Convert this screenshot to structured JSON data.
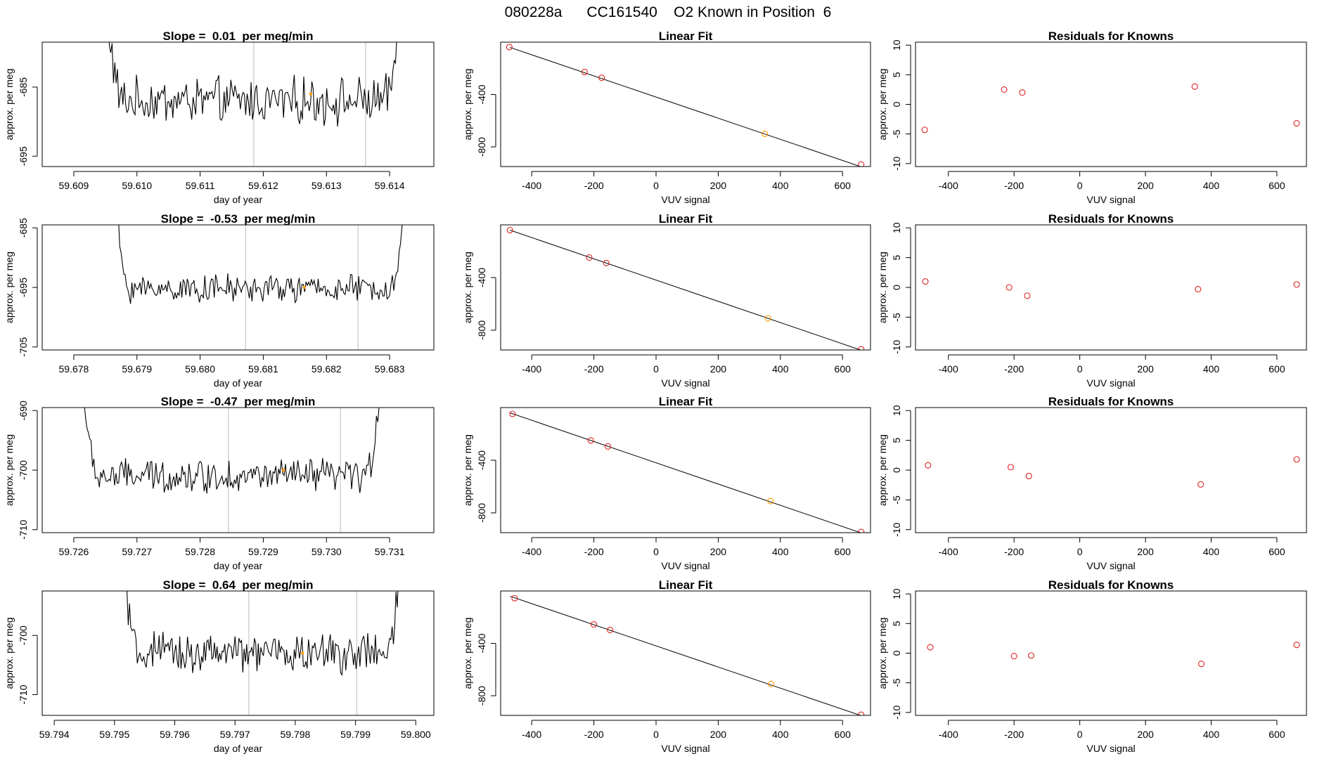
{
  "title": "080228a      CC161540    O2 Known in Position  6",
  "colors": {
    "trace": "#000000",
    "vline": "#bbbbbb",
    "point": "#dd2222",
    "highlight": "#ff9900",
    "axis": "#000000"
  },
  "chart_data": [
    {
      "type": "line",
      "row": 1,
      "title": "Slope =  0.01  per meg/min",
      "xlabel": "day of year",
      "ylabel": "approx. per meg",
      "xlim": [
        59.6085,
        59.6147
      ],
      "ylim": [
        -696.5,
        -678.5
      ],
      "xticks": [
        59.609,
        59.61,
        59.611,
        59.612,
        59.613,
        59.614
      ],
      "xtick_labels": [
        "59.609",
        "59.610",
        "59.611",
        "59.612",
        "59.613",
        "59.614"
      ],
      "yticks": [
        -685,
        -695
      ],
      "ytick_labels": [
        "-685",
        "-695"
      ],
      "start": 59.6095,
      "end": 59.6142,
      "base": -687.0,
      "amp": 2.6,
      "high": -670,
      "vlines": [
        59.61185,
        59.61362
      ],
      "highlight": [
        59.61275,
        -686.0
      ]
    },
    {
      "type": "line",
      "row": 2,
      "title": "Slope =  -0.53  per meg/min",
      "xlabel": "day of year",
      "ylabel": "approx. per meg",
      "xlim": [
        59.6775,
        59.6837
      ],
      "ylim": [
        -705.5,
        -684.5
      ],
      "xticks": [
        59.678,
        59.679,
        59.68,
        59.681,
        59.682,
        59.683
      ],
      "xtick_labels": [
        "59.678",
        "59.679",
        "59.680",
        "59.681",
        "59.682",
        "59.683"
      ],
      "yticks": [
        -685,
        -695,
        -705
      ],
      "ytick_labels": [
        "-685",
        "-695",
        "-705"
      ],
      "start": 59.6786,
      "end": 59.6833,
      "base": -695.2,
      "amp": 1.8,
      "high": -670,
      "vlines": [
        59.68072,
        59.6825
      ],
      "highlight": [
        59.68165,
        -695.0
      ]
    },
    {
      "type": "line",
      "row": 3,
      "title": "Slope =  -0.47  per meg/min",
      "xlabel": "day of year",
      "ylabel": "approx. per meg",
      "xlim": [
        59.7255,
        59.7317
      ],
      "ylim": [
        -710.5,
        -689.5
      ],
      "xticks": [
        59.726,
        59.727,
        59.728,
        59.729,
        59.73,
        59.731
      ],
      "xtick_labels": [
        "59.726",
        "59.727",
        "59.728",
        "59.729",
        "59.730",
        "59.731"
      ],
      "yticks": [
        -690,
        -700,
        -710
      ],
      "ytick_labels": [
        "-690",
        "-700",
        "-710"
      ],
      "start": 59.7261,
      "end": 59.7309,
      "base": -701.0,
      "amp": 2.2,
      "high": -680,
      "vlines": [
        59.72845,
        59.73022
      ],
      "highlight": [
        59.72932,
        -700.0
      ]
    },
    {
      "type": "line",
      "row": 4,
      "title": "Slope =  0.64  per meg/min",
      "xlabel": "day of year",
      "ylabel": "approx. per meg",
      "xlim": [
        59.7938,
        59.8003
      ],
      "ylim": [
        -713.5,
        -692.5
      ],
      "xticks": [
        59.794,
        59.795,
        59.796,
        59.797,
        59.798,
        59.799,
        59.8
      ],
      "xtick_labels": [
        "59.794",
        "59.795",
        "59.796",
        "59.797",
        "59.798",
        "59.799",
        "59.800"
      ],
      "yticks": [
        -700,
        -710
      ],
      "ytick_labels": [
        "-700",
        "-710"
      ],
      "start": 59.7951,
      "end": 59.7998,
      "base": -703.0,
      "amp": 2.6,
      "high": -680,
      "vlines": [
        59.79723,
        59.79902
      ],
      "highlight": [
        59.79812,
        -703.0
      ]
    },
    {
      "type": "scatter",
      "row": 1,
      "title": "Linear Fit",
      "xlabel": "VUV signal",
      "ylabel": "approx. per meg",
      "xlim": [
        -500,
        690
      ],
      "ylim": [
        -950,
        0
      ],
      "xticks": [
        -400,
        -200,
        0,
        200,
        400,
        600
      ],
      "xtick_labels": [
        "-400",
        "-200",
        "0",
        "200",
        "400",
        "600"
      ],
      "yticks": [
        -400,
        -800
      ],
      "ytick_labels": [
        "-400",
        "-800"
      ],
      "line": [
        [
          -470,
          -40
        ],
        [
          670,
          -960
        ]
      ],
      "points": [
        [
          -472,
          -38
        ],
        [
          -230,
          -228
        ],
        [
          -175,
          -272
        ],
        [
          350,
          -700
        ],
        [
          660,
          -935
        ]
      ],
      "highlight_index": 3
    },
    {
      "type": "scatter",
      "row": 2,
      "title": "Linear Fit",
      "xlabel": "VUV signal",
      "ylabel": "approx. per meg",
      "xlim": [
        -500,
        690
      ],
      "ylim": [
        -950,
        0
      ],
      "xticks": [
        -400,
        -200,
        0,
        200,
        400,
        600
      ],
      "xtick_labels": [
        "-400",
        "-200",
        "0",
        "200",
        "400",
        "600"
      ],
      "yticks": [
        -400,
        -800
      ],
      "ytick_labels": [
        "-400",
        "-800"
      ],
      "line": [
        [
          -470,
          -40
        ],
        [
          670,
          -960
        ]
      ],
      "points": [
        [
          -470,
          -40
        ],
        [
          -215,
          -248
        ],
        [
          -160,
          -290
        ],
        [
          360,
          -710
        ],
        [
          660,
          -945
        ]
      ],
      "highlight_index": 3
    },
    {
      "type": "scatter",
      "row": 3,
      "title": "Linear Fit",
      "xlabel": "VUV signal",
      "ylabel": "approx. per meg",
      "xlim": [
        -500,
        690
      ],
      "ylim": [
        -950,
        0
      ],
      "xticks": [
        -400,
        -200,
        0,
        200,
        400,
        600
      ],
      "xtick_labels": [
        "-400",
        "-200",
        "0",
        "200",
        "400",
        "600"
      ],
      "yticks": [
        -400,
        -800
      ],
      "ytick_labels": [
        "-400",
        "-800"
      ],
      "line": [
        [
          -470,
          -40
        ],
        [
          670,
          -960
        ]
      ],
      "points": [
        [
          -462,
          -48
        ],
        [
          -210,
          -250
        ],
        [
          -155,
          -295
        ],
        [
          368,
          -710
        ],
        [
          660,
          -945
        ]
      ],
      "highlight_index": 3
    },
    {
      "type": "scatter",
      "row": 4,
      "title": "Linear Fit",
      "xlabel": "VUV signal",
      "ylabel": "approx. per meg",
      "xlim": [
        -500,
        690
      ],
      "ylim": [
        -950,
        0
      ],
      "xticks": [
        -400,
        -200,
        0,
        200,
        400,
        600
      ],
      "xtick_labels": [
        "-400",
        "-200",
        "0",
        "200",
        "400",
        "600"
      ],
      "yticks": [
        -400,
        -800
      ],
      "ytick_labels": [
        "-400",
        "-800"
      ],
      "line": [
        [
          -470,
          -40
        ],
        [
          670,
          -960
        ]
      ],
      "points": [
        [
          -455,
          -55
        ],
        [
          -200,
          -255
        ],
        [
          -148,
          -298
        ],
        [
          370,
          -710
        ],
        [
          660,
          -945
        ]
      ],
      "highlight_index": 3
    },
    {
      "type": "scatter",
      "row": 1,
      "title": "Residuals for Knowns",
      "xlabel": "VUV signal",
      "ylabel": "approx. per meg",
      "xlim": [
        -500,
        690
      ],
      "ylim": [
        -10.5,
        10.5
      ],
      "xticks": [
        -400,
        -200,
        0,
        200,
        400,
        600
      ],
      "xtick_labels": [
        "-400",
        "-200",
        "0",
        "200",
        "400",
        "600"
      ],
      "yticks": [
        10,
        5,
        0,
        -5,
        -10
      ],
      "ytick_labels": [
        "10",
        "5",
        "0",
        "-5",
        "-10"
      ],
      "points": [
        [
          -472,
          -4.3
        ],
        [
          -230,
          2.5
        ],
        [
          -175,
          2.0
        ],
        [
          350,
          3.0
        ],
        [
          660,
          -3.2
        ]
      ]
    },
    {
      "type": "scatter",
      "row": 2,
      "title": "Residuals for Knowns",
      "xlabel": "VUV signal",
      "ylabel": "approx. per meg",
      "xlim": [
        -500,
        690
      ],
      "ylim": [
        -10.5,
        10.5
      ],
      "xticks": [
        -400,
        -200,
        0,
        200,
        400,
        600
      ],
      "xtick_labels": [
        "-400",
        "-200",
        "0",
        "200",
        "400",
        "600"
      ],
      "yticks": [
        10,
        5,
        0,
        -5,
        -10
      ],
      "ytick_labels": [
        "10",
        "5",
        "0",
        "-5",
        "-10"
      ],
      "points": [
        [
          -470,
          1.0
        ],
        [
          -215,
          0.0
        ],
        [
          -160,
          -1.4
        ],
        [
          360,
          -0.3
        ],
        [
          660,
          0.5
        ]
      ]
    },
    {
      "type": "scatter",
      "row": 3,
      "title": "Residuals for Knowns",
      "xlabel": "VUV signal",
      "ylabel": "approx. per meg",
      "xlim": [
        -500,
        690
      ],
      "ylim": [
        -10.5,
        10.5
      ],
      "xticks": [
        -400,
        -200,
        0,
        200,
        400,
        600
      ],
      "xtick_labels": [
        "-400",
        "-200",
        "0",
        "200",
        "400",
        "600"
      ],
      "yticks": [
        10,
        5,
        0,
        -5,
        -10
      ],
      "ytick_labels": [
        "10",
        "5",
        "0",
        "-5",
        "-10"
      ],
      "points": [
        [
          -462,
          0.8
        ],
        [
          -210,
          0.5
        ],
        [
          -155,
          -1.0
        ],
        [
          368,
          -2.4
        ],
        [
          660,
          1.8
        ]
      ]
    },
    {
      "type": "scatter",
      "row": 4,
      "title": "Residuals for Knowns",
      "xlabel": "VUV signal",
      "ylabel": "approx. per meg",
      "xlim": [
        -500,
        690
      ],
      "ylim": [
        -10.5,
        10.5
      ],
      "xticks": [
        -400,
        -200,
        0,
        200,
        400,
        600
      ],
      "xtick_labels": [
        "-400",
        "-200",
        "0",
        "200",
        "400",
        "600"
      ],
      "yticks": [
        10,
        5,
        0,
        -5,
        -10
      ],
      "ytick_labels": [
        "10",
        "5",
        "0",
        "-5",
        "-10"
      ],
      "points": [
        [
          -455,
          1.0
        ],
        [
          -200,
          -0.5
        ],
        [
          -148,
          -0.4
        ],
        [
          370,
          -1.8
        ],
        [
          660,
          1.4
        ]
      ]
    }
  ]
}
